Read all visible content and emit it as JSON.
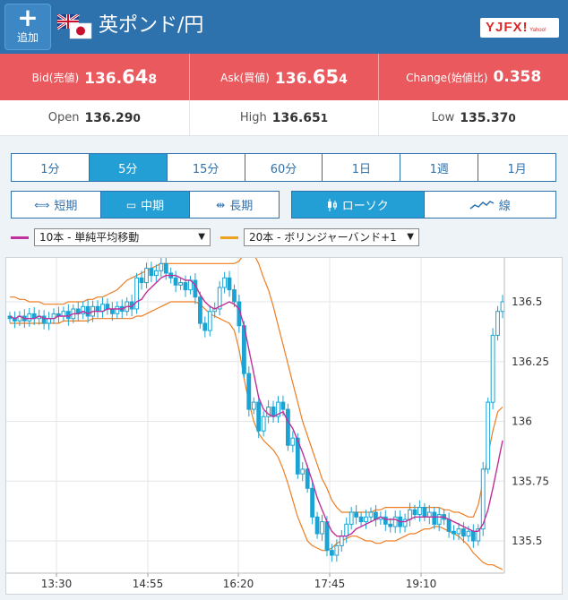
{
  "header": {
    "add_label": "追加",
    "add_icon": "plus-icon",
    "pair_title": "英ポンド/円",
    "logo_text": "YJFX!"
  },
  "quote": {
    "bid_label": "Bid(売値)",
    "bid_main": "136.",
    "bid_big": "64",
    "bid_small": "8",
    "ask_label": "Ask(買値)",
    "ask_main": "136.",
    "ask_big": "65",
    "ask_small": "4",
    "change_label": "Change(始値比)",
    "change_value": "0.358",
    "accent": "#e9595d"
  },
  "ohl": {
    "open_label": "Open",
    "open_main": "136.29",
    "open_small": "0",
    "high_label": "High",
    "high_main": "136.65",
    "high_small": "1",
    "low_label": "Low",
    "low_main": "135.37",
    "low_small": "0"
  },
  "timeframes": [
    "1分",
    "5分",
    "15分",
    "60分",
    "1日",
    "1週",
    "1月"
  ],
  "timeframe_selected": "5分",
  "ranges": [
    {
      "label": "短期",
      "icon": "narrow-arrows-icon"
    },
    {
      "label": "中期",
      "icon": "window-icon"
    },
    {
      "label": "長期",
      "icon": "wide-arrows-icon"
    }
  ],
  "range_selected": "中期",
  "chart_types": [
    {
      "label": "ローソク",
      "icon": "candlestick-icon"
    },
    {
      "label": "線",
      "icon": "line-chart-icon"
    }
  ],
  "chart_type_selected": "ローソク",
  "indicators": {
    "ma_label": "10本 - 単純平均移動",
    "ma_color": "#c0309a",
    "bb_label": "20本 - ボリンジャーバンド+1",
    "bb_color": "#f0a020"
  },
  "chart_data": {
    "type": "candlestick",
    "y_ticks": [
      "136.5",
      "136.25",
      "136",
      "135.75",
      "135.5"
    ],
    "x_ticks": [
      "13:30",
      "14:55",
      "16:20",
      "17:45",
      "19:10"
    ],
    "ylim": [
      135.37,
      136.68
    ],
    "closes": [
      136.43,
      136.42,
      136.44,
      136.42,
      136.45,
      136.43,
      136.44,
      136.41,
      136.43,
      136.45,
      136.44,
      136.46,
      136.43,
      136.47,
      136.45,
      136.48,
      136.44,
      136.48,
      136.46,
      136.49,
      136.47,
      136.45,
      136.48,
      136.46,
      136.5,
      136.47,
      136.6,
      136.58,
      136.64,
      136.61,
      136.63,
      136.66,
      136.62,
      136.6,
      136.57,
      136.58,
      136.55,
      136.59,
      136.52,
      136.41,
      136.38,
      136.46,
      136.47,
      136.56,
      136.6,
      136.55,
      136.5,
      136.4,
      136.2,
      136.05,
      136.08,
      135.96,
      136.02,
      136.06,
      136.02,
      136.08,
      136.05,
      135.9,
      135.93,
      135.78,
      135.8,
      135.72,
      135.6,
      135.53,
      135.58,
      135.46,
      135.44,
      135.48,
      135.52,
      135.57,
      135.62,
      135.6,
      135.58,
      135.6,
      135.62,
      135.59,
      135.6,
      135.57,
      135.56,
      135.6,
      135.56,
      135.59,
      135.63,
      135.61,
      135.64,
      135.6,
      135.62,
      135.57,
      135.61,
      135.59,
      135.54,
      135.53,
      135.55,
      135.52,
      135.54,
      135.5,
      135.55,
      135.8,
      136.08,
      136.36,
      136.46,
      136.5
    ],
    "ma10": [
      136.44,
      136.43,
      136.44,
      136.43,
      136.43,
      136.43,
      136.44,
      136.43,
      136.43,
      136.43,
      136.44,
      136.44,
      136.44,
      136.45,
      136.45,
      136.46,
      136.45,
      136.46,
      136.46,
      136.46,
      136.47,
      136.47,
      136.47,
      136.47,
      136.48,
      136.48,
      136.5,
      136.51,
      136.54,
      136.56,
      136.58,
      136.6,
      136.61,
      136.61,
      136.61,
      136.6,
      136.59,
      136.59,
      136.57,
      136.53,
      136.5,
      136.48,
      136.47,
      136.48,
      136.49,
      136.5,
      136.49,
      136.47,
      136.4,
      136.3,
      136.2,
      136.1,
      136.05,
      136.03,
      136.02,
      136.03,
      136.04,
      136.0,
      135.97,
      135.92,
      135.87,
      135.81,
      135.75,
      135.68,
      135.63,
      135.58,
      135.54,
      135.52,
      135.52,
      135.52,
      135.53,
      135.55,
      135.56,
      135.57,
      135.58,
      135.59,
      135.6,
      135.59,
      135.59,
      135.59,
      135.58,
      135.58,
      135.59,
      135.6,
      135.6,
      135.6,
      135.6,
      135.6,
      135.6,
      135.6,
      135.59,
      135.58,
      135.57,
      135.56,
      135.55,
      135.54,
      135.54,
      135.57,
      135.63,
      135.72,
      135.82,
      135.92
    ],
    "bb_upper": [
      136.52,
      136.52,
      136.51,
      136.51,
      136.5,
      136.5,
      136.5,
      136.49,
      136.49,
      136.49,
      136.49,
      136.49,
      136.5,
      136.5,
      136.5,
      136.5,
      136.51,
      136.51,
      136.52,
      136.52,
      136.53,
      136.54,
      136.55,
      136.57,
      136.59,
      136.6,
      136.61,
      136.62,
      136.63,
      136.64,
      136.65,
      136.66,
      136.66,
      136.66,
      136.66,
      136.66,
      136.66,
      136.66,
      136.66,
      136.66,
      136.66,
      136.66,
      136.66,
      136.66,
      136.66,
      136.66,
      136.66,
      136.67,
      136.7,
      136.72,
      136.7,
      136.66,
      136.6,
      136.55,
      136.48,
      136.4,
      136.32,
      136.24,
      136.16,
      136.08,
      136.0,
      135.94,
      135.88,
      135.82,
      135.76,
      135.72,
      135.67,
      135.64,
      135.62,
      135.62,
      135.62,
      135.62,
      135.62,
      135.62,
      135.62,
      135.63,
      135.63,
      135.64,
      135.64,
      135.64,
      135.64,
      135.64,
      135.64,
      135.64,
      135.64,
      135.64,
      135.64,
      135.64,
      135.64,
      135.63,
      135.63,
      135.62,
      135.62,
      135.61,
      135.6,
      135.6,
      135.65,
      135.75,
      135.86,
      135.96,
      136.04,
      136.06
    ],
    "bb_lower": [
      136.41,
      136.41,
      136.41,
      136.41,
      136.41,
      136.41,
      136.41,
      136.41,
      136.41,
      136.41,
      136.41,
      136.42,
      136.42,
      136.42,
      136.42,
      136.42,
      136.42,
      136.43,
      136.43,
      136.43,
      136.43,
      136.43,
      136.43,
      136.43,
      136.43,
      136.43,
      136.44,
      136.44,
      136.45,
      136.46,
      136.47,
      136.48,
      136.49,
      136.5,
      136.5,
      136.5,
      136.5,
      136.5,
      136.5,
      136.49,
      136.47,
      136.45,
      136.44,
      136.43,
      136.42,
      136.41,
      136.38,
      136.3,
      136.18,
      136.08,
      136.0,
      135.95,
      135.92,
      135.9,
      135.88,
      135.85,
      135.8,
      135.74,
      135.67,
      135.6,
      135.55,
      135.5,
      135.48,
      135.47,
      135.46,
      135.46,
      135.47,
      135.49,
      135.5,
      135.51,
      135.52,
      135.52,
      135.51,
      135.5,
      135.5,
      135.49,
      135.49,
      135.5,
      135.5,
      135.5,
      135.51,
      135.52,
      135.53,
      135.53,
      135.54,
      135.55,
      135.55,
      135.56,
      135.56,
      135.55,
      135.54,
      135.53,
      135.52,
      135.5,
      135.48,
      135.45,
      135.43,
      135.41,
      135.4,
      135.4,
      135.39,
      135.38
    ]
  }
}
